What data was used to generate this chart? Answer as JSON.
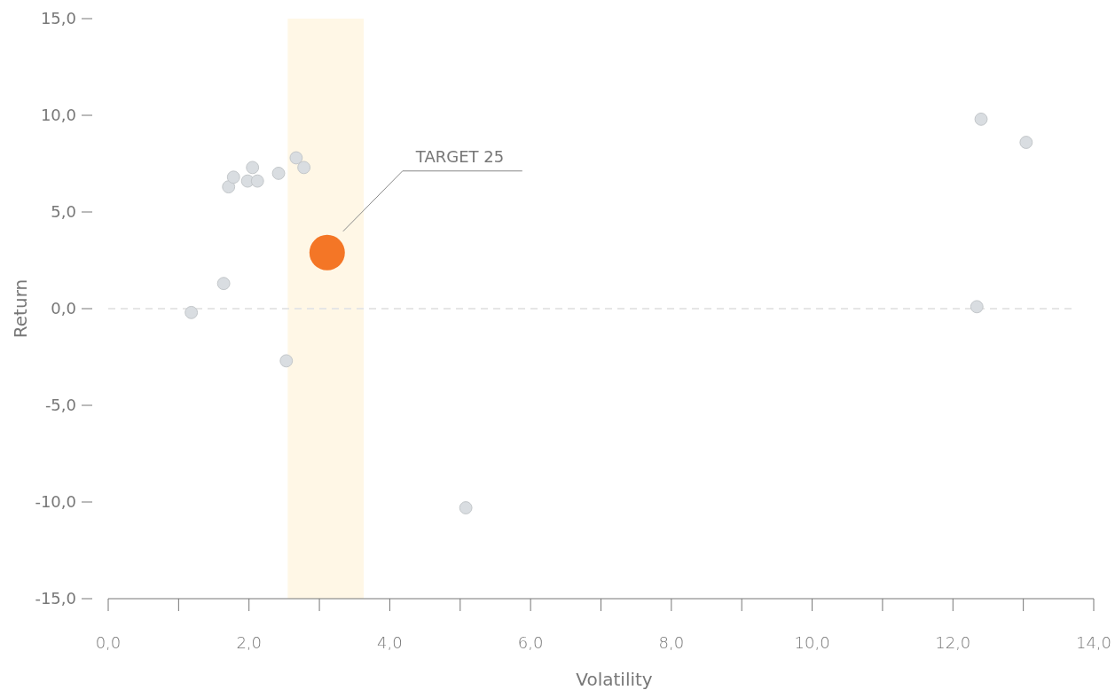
{
  "chart_data": {
    "type": "bubble",
    "xlabel": "Volatility",
    "ylabel": "Return",
    "xlim": [
      0,
      14
    ],
    "ylim": [
      -15,
      15
    ],
    "xticks": [
      {
        "value": 0,
        "label": "0,0"
      },
      {
        "value": 1,
        "label": null
      },
      {
        "value": 2,
        "label": "2,0"
      },
      {
        "value": 3,
        "label": null
      },
      {
        "value": 4,
        "label": "4,0"
      },
      {
        "value": 5,
        "label": null
      },
      {
        "value": 6,
        "label": "6,0"
      },
      {
        "value": 7,
        "label": null
      },
      {
        "value": 8,
        "label": "8,0"
      },
      {
        "value": 9,
        "label": null
      },
      {
        "value": 10,
        "label": "10,0"
      },
      {
        "value": 11,
        "label": null
      },
      {
        "value": 12,
        "label": "12,0"
      },
      {
        "value": 13,
        "label": null
      },
      {
        "value": 14,
        "label": "14,0"
      }
    ],
    "yticks": [
      {
        "value": -15,
        "label": "-15,0"
      },
      {
        "value": -10,
        "label": "-10,0"
      },
      {
        "value": -5,
        "label": "-5,0"
      },
      {
        "value": 0,
        "label": "0,0"
      },
      {
        "value": 5,
        "label": "5,0"
      },
      {
        "value": 10,
        "label": "10,0"
      },
      {
        "value": 15,
        "label": "15,0"
      }
    ],
    "grid": false,
    "marker": "circle",
    "series": [
      {
        "color": "#d9dde1",
        "x": [
          1.18,
          1.64,
          1.71,
          1.78,
          1.98,
          2.05,
          2.12,
          2.42,
          2.67,
          2.78,
          2.53,
          5.08,
          12.4,
          13.04,
          12.34
        ],
        "values": [
          -0.2,
          1.3,
          6.3,
          6.8,
          6.6,
          7.3,
          6.6,
          7.0,
          7.8,
          7.3,
          -2.7,
          -10.3,
          9.8,
          8.6,
          0.1
        ],
        "sizes": [
          0.12,
          0.12,
          0.12,
          0.12,
          0.12,
          0.12,
          0.12,
          0.12,
          0.12,
          0.12,
          0.12,
          0.12,
          0.12,
          0.12,
          0.12
        ]
      },
      {
        "color": "#f47626",
        "x": [
          3.11
        ],
        "values": [
          2.9
        ],
        "sizes": [
          1
        ]
      }
    ],
    "bands": [
      {
        "axis": "x",
        "from": 2.55,
        "to": 3.63,
        "color": "#fff7e6"
      }
    ],
    "ref_lines": [
      {
        "axis": "y",
        "value": 0,
        "color": "#e6e6e6",
        "line_style": "dashed"
      }
    ],
    "annotations": [
      "TARGET 25"
    ]
  }
}
